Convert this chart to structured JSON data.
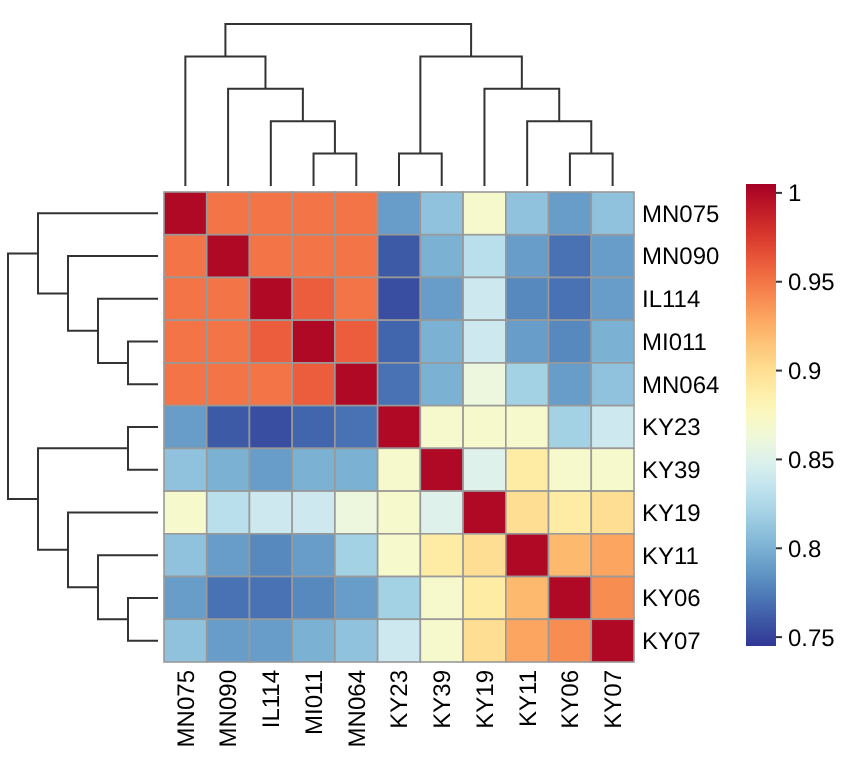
{
  "chart_data": {
    "type": "heatmap",
    "categories": [
      "MN075",
      "MN090",
      "IL114",
      "MI011",
      "MN064",
      "KY23",
      "KY39",
      "KY19",
      "KY11",
      "KY06",
      "KY07"
    ],
    "y_categories": [
      "MN075",
      "MN090",
      "IL114",
      "MI011",
      "MN064",
      "KY23",
      "KY39",
      "KY19",
      "KY11",
      "KY06",
      "KY07"
    ],
    "cells": [
      [
        1,
        0.95,
        0.95,
        0.95,
        0.95,
        0.79,
        0.81,
        0.87,
        0.81,
        0.79,
        0.81
      ],
      [
        0.95,
        1,
        0.95,
        0.95,
        0.95,
        0.76,
        0.8,
        0.83,
        0.79,
        0.77,
        0.79
      ],
      [
        0.95,
        0.95,
        1,
        0.96,
        0.95,
        0.755,
        0.79,
        0.84,
        0.78,
        0.77,
        0.79
      ],
      [
        0.95,
        0.95,
        0.96,
        1,
        0.96,
        0.765,
        0.8,
        0.84,
        0.79,
        0.78,
        0.8
      ],
      [
        0.95,
        0.95,
        0.95,
        0.96,
        1,
        0.77,
        0.8,
        0.86,
        0.82,
        0.79,
        0.81
      ],
      [
        0.79,
        0.76,
        0.755,
        0.765,
        0.77,
        1,
        0.87,
        0.87,
        0.87,
        0.82,
        0.84
      ],
      [
        0.81,
        0.8,
        0.79,
        0.8,
        0.8,
        0.87,
        1,
        0.85,
        0.89,
        0.87,
        0.87
      ],
      [
        0.87,
        0.83,
        0.84,
        0.84,
        0.86,
        0.87,
        0.85,
        1,
        0.9,
        0.89,
        0.9
      ],
      [
        0.81,
        0.79,
        0.78,
        0.79,
        0.82,
        0.87,
        0.89,
        0.9,
        1,
        0.92,
        0.93
      ],
      [
        0.79,
        0.77,
        0.77,
        0.78,
        0.79,
        0.82,
        0.87,
        0.89,
        0.92,
        1,
        0.94
      ],
      [
        0.81,
        0.79,
        0.79,
        0.8,
        0.81,
        0.84,
        0.87,
        0.9,
        0.93,
        0.94,
        1
      ]
    ],
    "clim": [
      0.745,
      1.005
    ],
    "cticks": [
      0.75,
      0.8,
      0.85,
      0.9,
      0.95,
      1
    ]
  }
}
